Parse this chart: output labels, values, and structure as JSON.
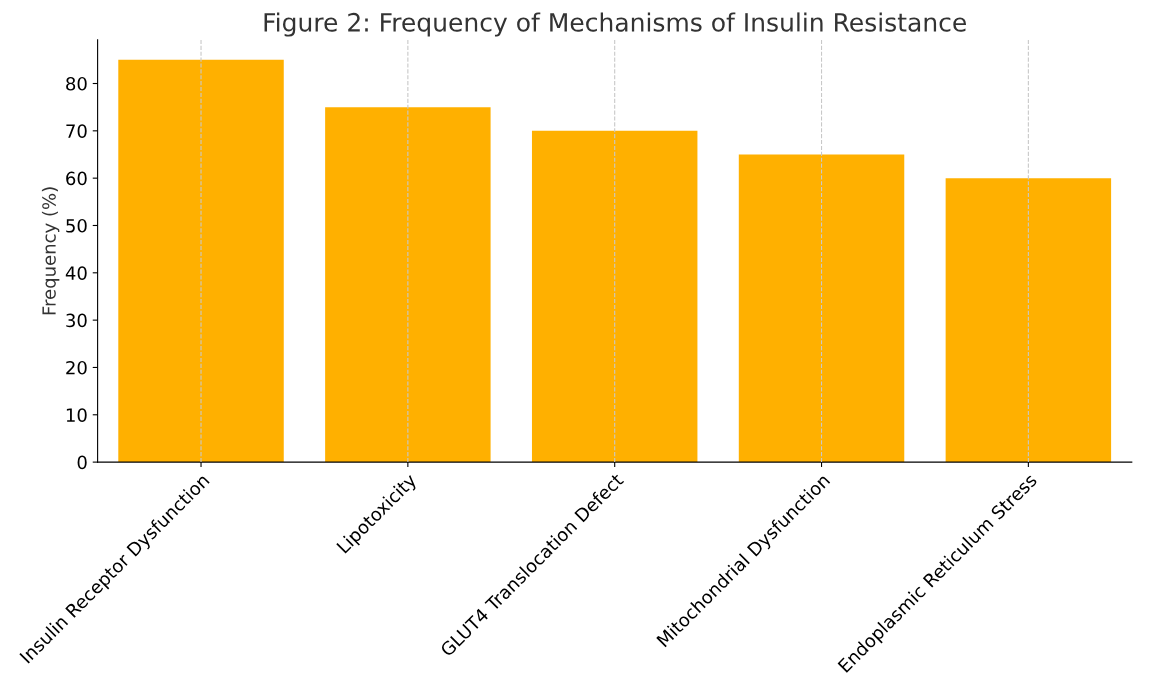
{
  "chart_data": {
    "type": "bar",
    "title": "Figure 2: Frequency of Mechanisms of Insulin Resistance",
    "ylabel": "Frequency (%)",
    "categories": [
      "Insulin Receptor Dysfunction",
      "Lipotoxicity",
      "GLUT4 Translocation Defect",
      "Mitochondrial Dysfunction",
      "Endoplasmic Reticulum Stress"
    ],
    "values": [
      85,
      75,
      70,
      65,
      60
    ],
    "color": "#ffb000",
    "ylim": [
      0,
      89.25
    ],
    "yticks": [
      0,
      10,
      20,
      30,
      40,
      50,
      60,
      70,
      80
    ],
    "grid": "x"
  }
}
